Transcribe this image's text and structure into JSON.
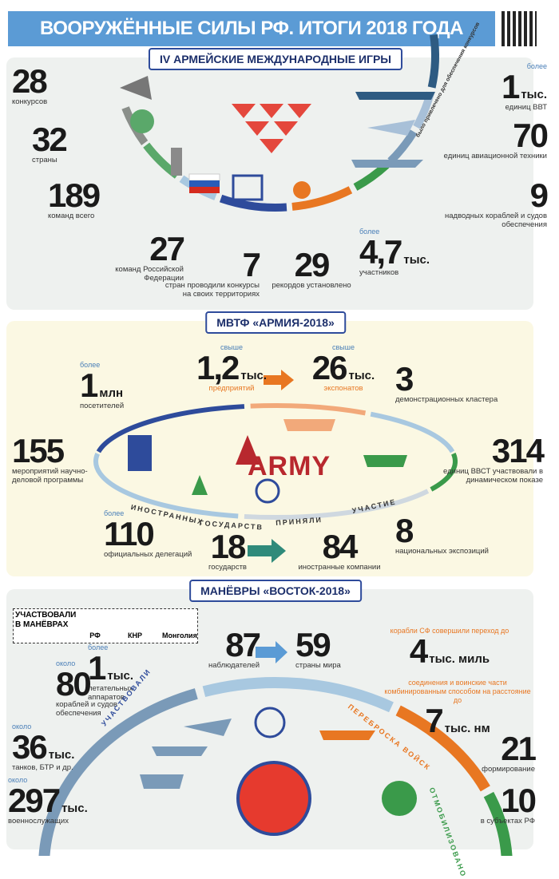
{
  "header": {
    "title": "ВООРУЖЁННЫЕ СИЛЫ РФ. ИТОГИ 2018 ГОДА"
  },
  "sections": [
    {
      "title": "IV АРМЕЙСКИЕ МЕЖДУНАРОДНЫЕ ИГРЫ",
      "arc_labels": [
        "было привлечено для обеспечения конкурсов"
      ],
      "stats": [
        {
          "value": "28",
          "label": "конкурсов"
        },
        {
          "value": "32",
          "label": "страны"
        },
        {
          "value": "189",
          "label": "команд всего"
        },
        {
          "value": "27",
          "label": "команд Российской Федерации"
        },
        {
          "value": "7",
          "label": "стран проводили конкурсы на своих территориях"
        },
        {
          "value": "29",
          "label": "рекордов установлено"
        },
        {
          "prefix": "более",
          "value": "4,7",
          "unit": "тыс.",
          "label": "участников"
        },
        {
          "value": "9",
          "label": "надводных кораблей и судов обеспечения"
        },
        {
          "value": "70",
          "label": "единиц авиационной техники"
        },
        {
          "prefix": "более",
          "value": "1",
          "unit": "тыс.",
          "label": "единиц ВВТ"
        }
      ]
    },
    {
      "title": "МВТФ «АРМИЯ-2018»",
      "logo": "ARMY",
      "arc_labels": [
        "ИНОСТРАННЫХ",
        "ГОСУДАРСТВ",
        "ПРИНЯЛИ",
        "УЧАСТИЕ"
      ],
      "stats": [
        {
          "prefix": "более",
          "value": "1",
          "unit": "млн",
          "label": "посетителей"
        },
        {
          "prefix": "свыше",
          "value": "1,2",
          "unit": "тыс.",
          "label": "предприятий"
        },
        {
          "prefix": "свыше",
          "value": "26",
          "unit": "тыс.",
          "label": "экспонатов"
        },
        {
          "value": "3",
          "label": "демонстрационных кластера"
        },
        {
          "value": "155",
          "label": "мероприятий научно-деловой программы"
        },
        {
          "value": "314",
          "label": "единиц ВВСТ участвовали в динамическом показе"
        },
        {
          "prefix": "более",
          "value": "110",
          "label": "официальных делегаций"
        },
        {
          "value": "18",
          "label": "государств"
        },
        {
          "value": "84",
          "label": "иностранные компании"
        },
        {
          "value": "8",
          "label": "национальных экспозиций"
        }
      ]
    },
    {
      "title": "МАНЁВРЫ «ВОСТОК-2018»",
      "participants": {
        "label": "УЧАСТВОВАЛИ В МАНЁВРАХ",
        "countries": [
          "РФ",
          "КНР",
          "Монголия"
        ]
      },
      "arc_labels": [
        "УЧАСТВОВАЛИ",
        "ПЕРЕБРОСКА ВОЙСК",
        "ОТМОБИЛИЗОВАНО"
      ],
      "stats": [
        {
          "prefix": "более",
          "value": "1",
          "unit": "тыс.",
          "label": "летательных аппаратов"
        },
        {
          "prefix": "около",
          "value": "80",
          "label": "кораблей и судов обеспечения"
        },
        {
          "prefix": "около",
          "value": "36",
          "unit": "тыс.",
          "label": "танков, БТР и др."
        },
        {
          "prefix": "около",
          "value": "297",
          "unit": "тыс.",
          "label": "военнослужащих"
        },
        {
          "value": "87",
          "label": "наблюдателей"
        },
        {
          "value": "59",
          "label": "страны мира"
        },
        {
          "prefix": "корабли СФ совершили переход до",
          "value": "4",
          "unit": "тыс. миль"
        },
        {
          "prefix": "соединения и воинские части комбинированным способом на расстояние до",
          "value": "7",
          "unit": "тыс. нм"
        },
        {
          "value": "21",
          "label": "формирование"
        },
        {
          "value": "10",
          "label": "в субъектах РФ"
        }
      ]
    }
  ]
}
